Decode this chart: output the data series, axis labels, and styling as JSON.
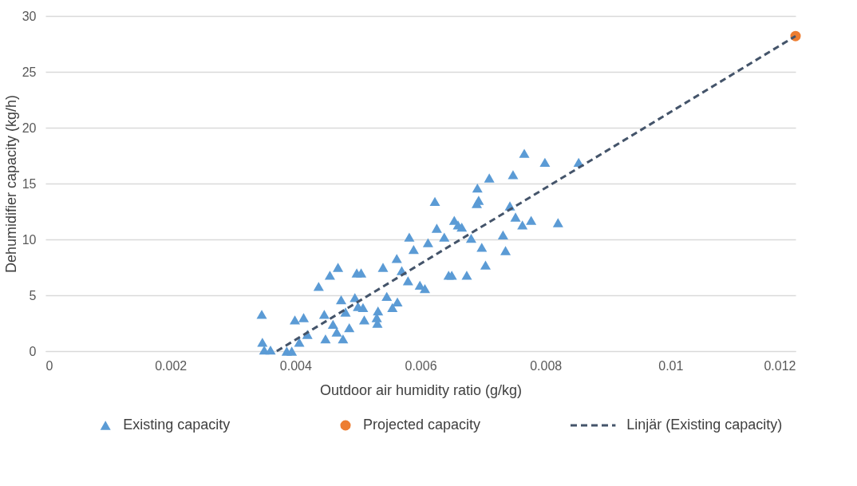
{
  "chart_data": {
    "type": "scatter",
    "xlabel": "Outdoor air humidity ratio (g/kg)",
    "ylabel": "Dehumidifier capacity (kg/h)",
    "xlim": [
      0,
      0.012
    ],
    "xticks": [
      0,
      0.002,
      0.004,
      0.006,
      0.008,
      0.01,
      0.012
    ],
    "ylim": [
      0,
      30
    ],
    "yticks": [
      0,
      5,
      10,
      15,
      20,
      25,
      30
    ],
    "grid": "y",
    "legend": "bottom",
    "series": [
      {
        "name": "Existing capacity",
        "marker": "triangle",
        "color": "#5b9bd5",
        "x": [
          0.00346,
          0.00347,
          0.0035,
          0.0036,
          0.00386,
          0.00394,
          0.00399,
          0.00406,
          0.00413,
          0.00419,
          0.00437,
          0.00446,
          0.00448,
          0.00455,
          0.00466,
          0.00468,
          0.00473,
          0.00476,
          0.0048,
          0.00486,
          0.00495,
          0.00498,
          0.00505,
          0.00508,
          0.0051,
          0.00531,
          0.00532,
          0.0054,
          0.00546,
          0.00555,
          0.00563,
          0.00562,
          0.0057,
          0.00582,
          0.00589,
          0.00599,
          0.00607,
          0.00612,
          0.00623,
          0.00626,
          0.00638,
          0.00645,
          0.0065,
          0.00654,
          0.00666,
          0.00674,
          0.00681,
          0.00691,
          0.00693,
          0.00698,
          0.00704,
          0.0071,
          0.00732,
          0.00736,
          0.00743,
          0.00748,
          0.00752,
          0.00763,
          0.00766,
          0.00777,
          0.00799,
          0.0082,
          0.00853,
          0.0046,
          0.005,
          0.0053,
          0.0058,
          0.0066,
          0.0069
        ],
        "values": [
          3.3,
          0.8,
          0.1,
          0.1,
          0,
          0,
          2.8,
          0.8,
          3.0,
          1.5,
          5.8,
          3.3,
          1.1,
          6.8,
          1.7,
          7.5,
          4.6,
          1.1,
          3.5,
          2.1,
          4.8,
          7.0,
          7.0,
          3.9,
          2.8,
          2.5,
          3.6,
          7.5,
          4.9,
          3.9,
          4.4,
          8.3,
          7.2,
          10.2,
          9.1,
          5.9,
          5.6,
          9.7,
          13.4,
          11.0,
          10.2,
          6.8,
          6.8,
          11.7,
          11.1,
          6.8,
          10.1,
          14.6,
          13.5,
          9.3,
          7.7,
          15.5,
          10.4,
          9.0,
          13.0,
          15.8,
          12.0,
          11.3,
          17.7,
          11.7,
          16.9,
          11.5,
          16.9,
          2.4,
          4.0,
          3.0,
          6.3,
          11.3,
          13.2
        ]
      },
      {
        "name": "Projected capacity",
        "type": "scatter",
        "marker": "circle",
        "color": "#ed7d31",
        "x": [
          0.012
        ],
        "values": [
          28.2
        ]
      },
      {
        "name": "Linjär (Existing capacity)",
        "type": "line",
        "line_style": "dashed",
        "color": "#44546a",
        "x": [
          0.0037,
          0.012
        ],
        "values": [
          0,
          28.2
        ]
      }
    ]
  }
}
